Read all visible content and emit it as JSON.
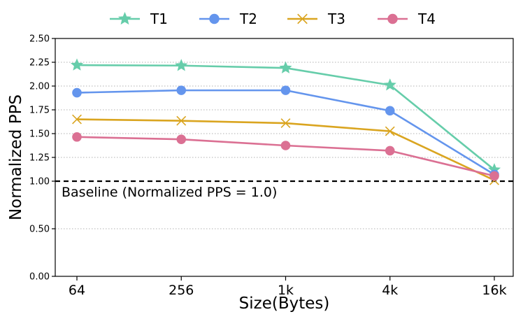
{
  "chart_data": {
    "type": "line",
    "title": "",
    "xlabel": "Size(Bytes)",
    "ylabel": "Normalized PPS",
    "categories": [
      "64",
      "256",
      "1k",
      "4k",
      "16k"
    ],
    "ylim": [
      0,
      2.5
    ],
    "yticks": [
      0.0,
      0.5,
      1.0,
      1.25,
      1.5,
      1.75,
      2.0,
      2.25,
      2.5
    ],
    "ytick_labels": [
      "0.00",
      "0.50",
      "1.00",
      "1.25",
      "1.50",
      "1.75",
      "2.00",
      "2.25",
      "2.50"
    ],
    "grid": "horizontal dotted",
    "legend_position": "top-center",
    "series": [
      {
        "name": "T1",
        "color": "#66cdaa",
        "marker": "star",
        "values": [
          2.22,
          2.215,
          2.19,
          2.01,
          1.12
        ]
      },
      {
        "name": "T2",
        "color": "#6495ed",
        "marker": "circle",
        "values": [
          1.93,
          1.955,
          1.955,
          1.74,
          1.07
        ]
      },
      {
        "name": "T3",
        "color": "#daa520",
        "marker": "x",
        "values": [
          1.65,
          1.635,
          1.61,
          1.525,
          1.01
        ]
      },
      {
        "name": "T4",
        "color": "#db7093",
        "marker": "circle",
        "values": [
          1.465,
          1.44,
          1.375,
          1.32,
          1.055
        ]
      }
    ],
    "baseline": {
      "value": 1.0,
      "label": "Baseline (Normalized PPS = 1.0)"
    }
  }
}
